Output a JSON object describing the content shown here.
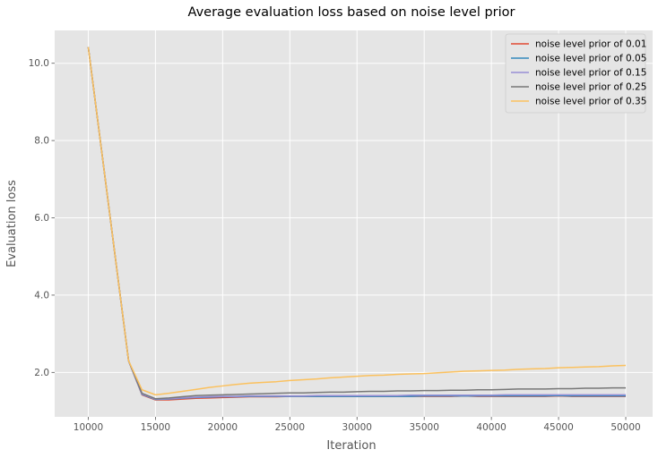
{
  "chart_data": {
    "type": "line",
    "title": "Average evaluation loss based on noise level prior",
    "xlabel": "Iteration",
    "ylabel": "Evaluation loss",
    "xlim": [
      7500,
      52000
    ],
    "ylim": [
      0.85,
      10.85
    ],
    "xticks": [
      10000,
      15000,
      20000,
      25000,
      30000,
      35000,
      40000,
      45000,
      50000
    ],
    "xtick_labels": [
      "10000",
      "15000",
      "20000",
      "25000",
      "30000",
      "35000",
      "40000",
      "45000",
      "50000"
    ],
    "yticks": [
      2,
      4,
      6,
      8,
      10
    ],
    "ytick_labels": [
      "2.0",
      "4.0",
      "6.0",
      "8.0",
      "10.0"
    ],
    "grid": true,
    "legend_position": "top-right",
    "x": [
      10000,
      13000,
      14000,
      15000,
      16000,
      17000,
      18000,
      19000,
      20000,
      21000,
      22000,
      23000,
      24000,
      25000,
      26000,
      27000,
      28000,
      29000,
      30000,
      31000,
      32000,
      33000,
      34000,
      35000,
      36000,
      37000,
      38000,
      39000,
      40000,
      41000,
      42000,
      43000,
      44000,
      45000,
      46000,
      47000,
      48000,
      49000,
      50000
    ],
    "series": [
      {
        "name": "noise level prior of 0.01",
        "color": "#E24A33",
        "values": [
          10.42,
          2.3,
          1.42,
          1.29,
          1.29,
          1.31,
          1.33,
          1.34,
          1.35,
          1.36,
          1.37,
          1.37,
          1.37,
          1.38,
          1.38,
          1.38,
          1.38,
          1.38,
          1.38,
          1.38,
          1.38,
          1.38,
          1.38,
          1.38,
          1.38,
          1.38,
          1.39,
          1.38,
          1.38,
          1.38,
          1.38,
          1.38,
          1.38,
          1.39,
          1.38,
          1.38,
          1.38,
          1.38,
          1.38
        ]
      },
      {
        "name": "noise level prior of 0.05",
        "color": "#348ABD",
        "values": [
          10.42,
          2.3,
          1.43,
          1.3,
          1.31,
          1.33,
          1.35,
          1.36,
          1.37,
          1.37,
          1.38,
          1.38,
          1.38,
          1.38,
          1.38,
          1.38,
          1.38,
          1.38,
          1.38,
          1.38,
          1.38,
          1.38,
          1.38,
          1.39,
          1.39,
          1.39,
          1.39,
          1.39,
          1.39,
          1.39,
          1.39,
          1.39,
          1.39,
          1.4,
          1.39,
          1.39,
          1.39,
          1.39,
          1.39
        ]
      },
      {
        "name": "noise level prior of 0.15",
        "color": "#988ED5",
        "values": [
          10.42,
          2.3,
          1.44,
          1.31,
          1.32,
          1.34,
          1.36,
          1.37,
          1.38,
          1.38,
          1.39,
          1.39,
          1.39,
          1.39,
          1.39,
          1.4,
          1.4,
          1.4,
          1.4,
          1.4,
          1.4,
          1.4,
          1.41,
          1.41,
          1.41,
          1.41,
          1.41,
          1.41,
          1.41,
          1.42,
          1.42,
          1.42,
          1.42,
          1.42,
          1.42,
          1.42,
          1.42,
          1.42,
          1.42
        ]
      },
      {
        "name": "noise level prior of 0.25",
        "color": "#777777",
        "values": [
          10.42,
          2.3,
          1.46,
          1.32,
          1.34,
          1.37,
          1.4,
          1.41,
          1.42,
          1.43,
          1.44,
          1.45,
          1.46,
          1.47,
          1.47,
          1.48,
          1.49,
          1.49,
          1.5,
          1.51,
          1.51,
          1.52,
          1.52,
          1.53,
          1.53,
          1.54,
          1.54,
          1.55,
          1.55,
          1.56,
          1.57,
          1.57,
          1.57,
          1.58,
          1.58,
          1.59,
          1.59,
          1.6,
          1.6
        ]
      },
      {
        "name": "noise level prior of 0.35",
        "color": "#FBC15E",
        "values": [
          10.42,
          2.3,
          1.55,
          1.42,
          1.46,
          1.51,
          1.56,
          1.61,
          1.65,
          1.69,
          1.72,
          1.74,
          1.76,
          1.79,
          1.81,
          1.83,
          1.86,
          1.88,
          1.9,
          1.92,
          1.93,
          1.95,
          1.96,
          1.97,
          1.99,
          2.01,
          2.03,
          2.04,
          2.05,
          2.06,
          2.08,
          2.09,
          2.1,
          2.12,
          2.13,
          2.14,
          2.15,
          2.17,
          2.18
        ]
      }
    ]
  }
}
